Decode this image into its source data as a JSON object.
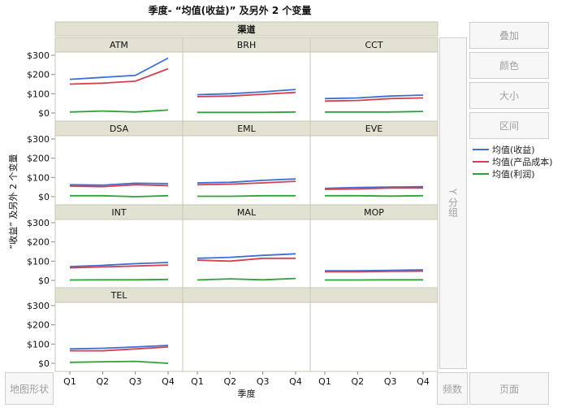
{
  "chart_data": {
    "type": "line",
    "title": "季度- “均值(收益)” 及另外 2 个变量",
    "group_header": "渠道",
    "xlabel": "季度",
    "ylabel": "“收益” 及另外 2 个变量",
    "categories": [
      "Q1",
      "Q2",
      "Q3",
      "Q4"
    ],
    "ylim": [
      0,
      300
    ],
    "yticks": [
      "$0",
      "$100",
      "$200",
      "$300"
    ],
    "series_names": [
      "均值(收益)",
      "均值(产品成本)",
      "均值(利润)"
    ],
    "series_colors": [
      "#3b6fd4",
      "#d2414f",
      "#2fa23a"
    ],
    "panels": [
      {
        "name": "ATM",
        "series": [
          [
            175,
            185,
            195,
            285
          ],
          [
            150,
            155,
            165,
            230
          ],
          [
            5,
            10,
            5,
            15
          ]
        ]
      },
      {
        "name": "BRH",
        "series": [
          [
            95,
            100,
            110,
            122
          ],
          [
            85,
            88,
            97,
            107
          ],
          [
            3,
            3,
            3,
            5
          ]
        ]
      },
      {
        "name": "CCT",
        "series": [
          [
            75,
            78,
            88,
            93
          ],
          [
            62,
            65,
            75,
            78
          ],
          [
            5,
            5,
            5,
            8
          ]
        ]
      },
      {
        "name": "DSA",
        "series": [
          [
            62,
            60,
            70,
            68
          ],
          [
            55,
            52,
            62,
            58
          ],
          [
            5,
            5,
            0,
            5
          ]
        ]
      },
      {
        "name": "EML",
        "series": [
          [
            72,
            75,
            85,
            92
          ],
          [
            62,
            65,
            72,
            80
          ],
          [
            2,
            2,
            5,
            5
          ]
        ]
      },
      {
        "name": "EVE",
        "series": [
          [
            43,
            48,
            50,
            52
          ],
          [
            38,
            40,
            45,
            45
          ],
          [
            5,
            5,
            3,
            5
          ]
        ]
      },
      {
        "name": "INT",
        "series": [
          [
            72,
            78,
            87,
            93
          ],
          [
            65,
            70,
            75,
            80
          ],
          [
            2,
            3,
            3,
            5
          ]
        ]
      },
      {
        "name": "MAL",
        "series": [
          [
            115,
            120,
            130,
            138
          ],
          [
            105,
            100,
            115,
            115
          ],
          [
            2,
            8,
            3,
            10
          ]
        ]
      },
      {
        "name": "MOP",
        "series": [
          [
            50,
            50,
            52,
            55
          ],
          [
            45,
            45,
            47,
            48
          ],
          [
            2,
            2,
            3,
            3
          ]
        ]
      },
      {
        "name": "TEL",
        "series": [
          [
            75,
            78,
            85,
            93
          ],
          [
            65,
            65,
            75,
            85
          ],
          [
            5,
            8,
            10,
            0
          ]
        ]
      }
    ]
  },
  "controls": {
    "overlay": "叠加",
    "color": "颜色",
    "size": "大小",
    "interval": "区间",
    "y_group": "Y 分组",
    "map_shape": "地图形状",
    "frequency": "频数",
    "page": "页面"
  }
}
